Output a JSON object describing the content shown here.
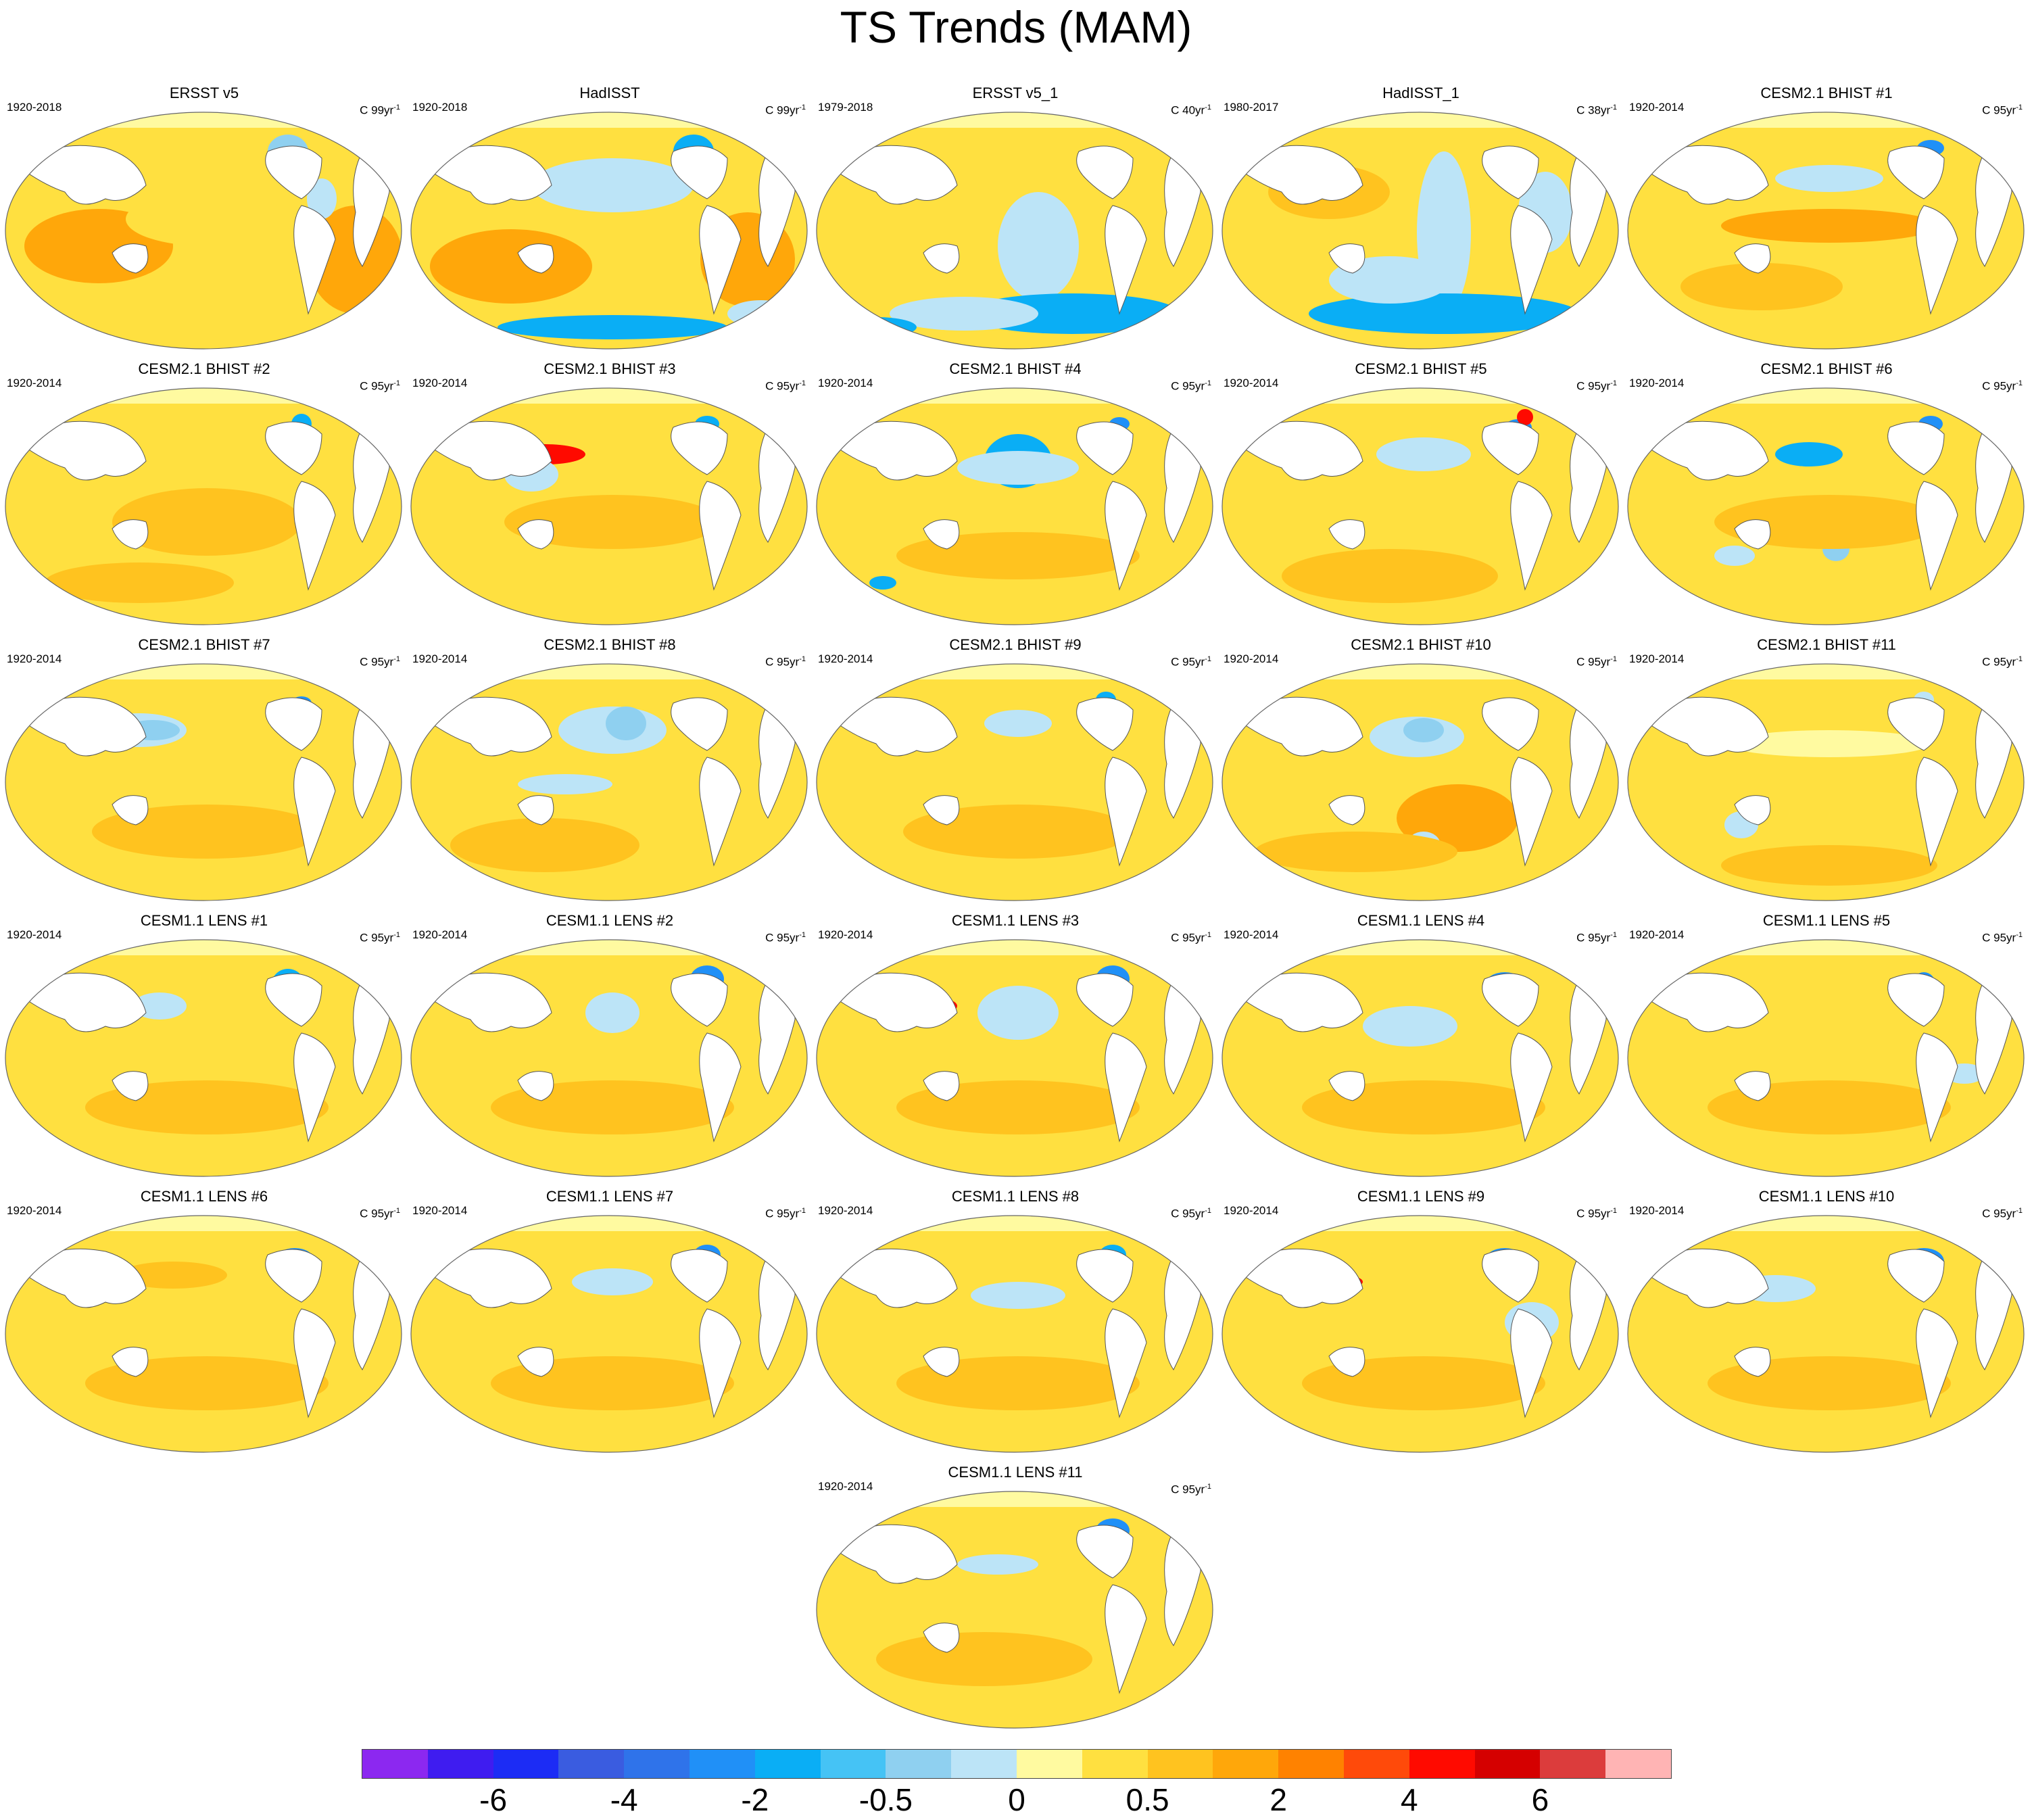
{
  "title": "TS Trends (MAM)",
  "colorbar": {
    "colors": [
      "#8c28f0",
      "#3f1cf0",
      "#1c2cf5",
      "#3a5ce0",
      "#2f73ea",
      "#2090f7",
      "#0aaef5",
      "#45c3f5",
      "#8fd0f0",
      "#bce4f7",
      "#fffaa0",
      "#ffe040",
      "#ffc31f",
      "#ffa70a",
      "#ff8200",
      "#ff4a0a",
      "#ff0a00",
      "#d50000",
      "#dc3c3c",
      "#ffb4b4"
    ],
    "labels": [
      "-6",
      "-4",
      "-2",
      "-0.5",
      "0",
      "0.5",
      "2",
      "4",
      "6"
    ]
  },
  "panels": [
    {
      "title": "ERSST v5",
      "period": "1920-2018",
      "units": "C 99yr",
      "exp": "-1",
      "pattern": "obs1"
    },
    {
      "title": "HadISST",
      "period": "1920-2018",
      "units": "C 99yr",
      "exp": "-1",
      "pattern": "obs2"
    },
    {
      "title": "ERSST v5_1",
      "period": "1979-2018",
      "units": "C 40yr",
      "exp": "-1",
      "pattern": "obs3"
    },
    {
      "title": "HadISST_1",
      "period": "1980-2017",
      "units": "C 38yr",
      "exp": "-1",
      "pattern": "obs4"
    },
    {
      "title": "CESM2.1 BHIST #1",
      "period": "1920-2014",
      "units": "C 95yr",
      "exp": "-1",
      "pattern": "m1"
    },
    {
      "title": "CESM2.1 BHIST #2",
      "period": "1920-2014",
      "units": "C 95yr",
      "exp": "-1",
      "pattern": "m2"
    },
    {
      "title": "CESM2.1 BHIST #3",
      "period": "1920-2014",
      "units": "C 95yr",
      "exp": "-1",
      "pattern": "m3"
    },
    {
      "title": "CESM2.1 BHIST #4",
      "period": "1920-2014",
      "units": "C 95yr",
      "exp": "-1",
      "pattern": "m4"
    },
    {
      "title": "CESM2.1 BHIST #5",
      "period": "1920-2014",
      "units": "C 95yr",
      "exp": "-1",
      "pattern": "m5"
    },
    {
      "title": "CESM2.1 BHIST #6",
      "period": "1920-2014",
      "units": "C 95yr",
      "exp": "-1",
      "pattern": "m6"
    },
    {
      "title": "CESM2.1 BHIST #7",
      "period": "1920-2014",
      "units": "C 95yr",
      "exp": "-1",
      "pattern": "m7"
    },
    {
      "title": "CESM2.1 BHIST #8",
      "period": "1920-2014",
      "units": "C 95yr",
      "exp": "-1",
      "pattern": "m8"
    },
    {
      "title": "CESM2.1 BHIST #9",
      "period": "1920-2014",
      "units": "C 95yr",
      "exp": "-1",
      "pattern": "m9"
    },
    {
      "title": "CESM2.1 BHIST #10",
      "period": "1920-2014",
      "units": "C 95yr",
      "exp": "-1",
      "pattern": "m10"
    },
    {
      "title": "CESM2.1 BHIST #11",
      "period": "1920-2014",
      "units": "C 95yr",
      "exp": "-1",
      "pattern": "m11"
    },
    {
      "title": "CESM1.1 LENS #1",
      "period": "1920-2014",
      "units": "C 95yr",
      "exp": "-1",
      "pattern": "l1"
    },
    {
      "title": "CESM1.1 LENS #2",
      "period": "1920-2014",
      "units": "C 95yr",
      "exp": "-1",
      "pattern": "l2"
    },
    {
      "title": "CESM1.1 LENS #3",
      "period": "1920-2014",
      "units": "C 95yr",
      "exp": "-1",
      "pattern": "l3"
    },
    {
      "title": "CESM1.1 LENS #4",
      "period": "1920-2014",
      "units": "C 95yr",
      "exp": "-1",
      "pattern": "l4"
    },
    {
      "title": "CESM1.1 LENS #5",
      "period": "1920-2014",
      "units": "C 95yr",
      "exp": "-1",
      "pattern": "l5"
    },
    {
      "title": "CESM1.1 LENS #6",
      "period": "1920-2014",
      "units": "C 95yr",
      "exp": "-1",
      "pattern": "l6"
    },
    {
      "title": "CESM1.1 LENS #7",
      "period": "1920-2014",
      "units": "C 95yr",
      "exp": "-1",
      "pattern": "l7"
    },
    {
      "title": "CESM1.1 LENS #8",
      "period": "1920-2014",
      "units": "C 95yr",
      "exp": "-1",
      "pattern": "l8"
    },
    {
      "title": "CESM1.1 LENS #9",
      "period": "1920-2014",
      "units": "C 95yr",
      "exp": "-1",
      "pattern": "l9"
    },
    {
      "title": "CESM1.1 LENS #10",
      "period": "1920-2014",
      "units": "C 95yr",
      "exp": "-1",
      "pattern": "l10"
    },
    {
      "title": "CESM1.1 LENS #11",
      "period": "1920-2014",
      "units": "C 95yr",
      "exp": "-1",
      "pattern": "l11"
    }
  ]
}
